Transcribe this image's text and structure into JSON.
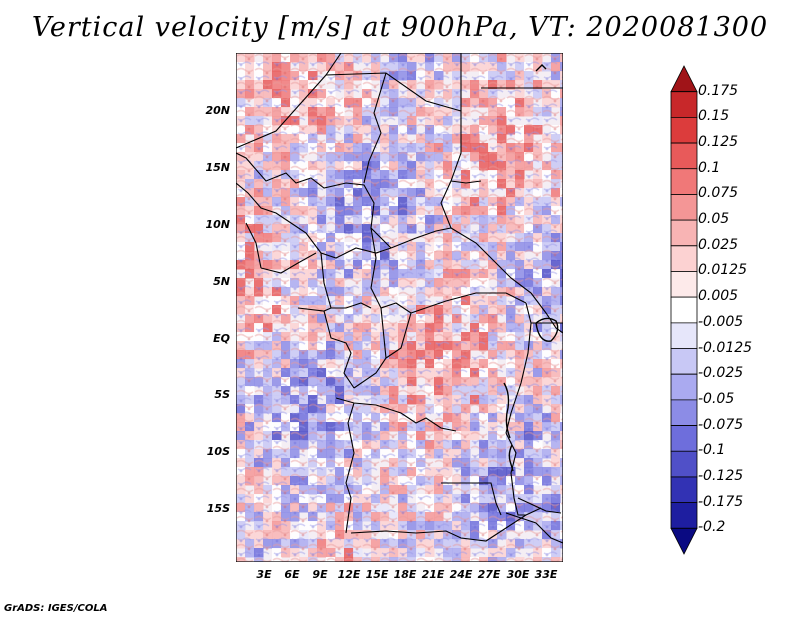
{
  "title": "Vertical velocity [m/s] at 900hPa, VT: 2020081300",
  "map": {
    "region": "Central Africa",
    "lat_labels": [
      {
        "lat": 20,
        "text": "20N"
      },
      {
        "lat": 15,
        "text": "15N"
      },
      {
        "lat": 10,
        "text": "10N"
      },
      {
        "lat": 5,
        "text": "5N"
      },
      {
        "lat": 0,
        "text": "EQ"
      },
      {
        "lat": -5,
        "text": "5S"
      },
      {
        "lat": -10,
        "text": "10S"
      },
      {
        "lat": -15,
        "text": "15S"
      }
    ],
    "lon_labels": [
      {
        "lon": 3,
        "text": "3E"
      },
      {
        "lon": 6,
        "text": "6E"
      },
      {
        "lon": 9,
        "text": "9E"
      },
      {
        "lon": 12,
        "text": "12E"
      },
      {
        "lon": 15,
        "text": "15E"
      },
      {
        "lon": 18,
        "text": "18E"
      },
      {
        "lon": 21,
        "text": "21E"
      },
      {
        "lon": 24,
        "text": "24E"
      },
      {
        "lon": 27,
        "text": "27E"
      },
      {
        "lon": 30,
        "text": "30E"
      },
      {
        "lon": 33,
        "text": "33E"
      }
    ],
    "lat_range": [
      -20,
      24.5
    ],
    "lon_range": [
      0.5,
      35
    ]
  },
  "colorbar": {
    "levels": [
      "0.175",
      "0.15",
      "0.125",
      "0.1",
      "0.075",
      "0.05",
      "0.025",
      "0.0125",
      "0.005",
      "-0.005",
      "-0.0125",
      "-0.025",
      "-0.05",
      "-0.075",
      "-0.1",
      "-0.125",
      "-0.175",
      "-0.2"
    ],
    "colors": [
      "#a01418",
      "#c8282a",
      "#dc3c3c",
      "#e85a5a",
      "#f07878",
      "#f49696",
      "#f8b4b4",
      "#fcd2d2",
      "#fdeaea",
      "#ffffff",
      "#e6e6fa",
      "#c8c8f5",
      "#aaaaf0",
      "#8c8ce6",
      "#6e6edc",
      "#5050c8",
      "#3232b4",
      "#1e1ea0",
      "#0a0a82"
    ]
  },
  "credit": "GrADS: IGES/COLA"
}
